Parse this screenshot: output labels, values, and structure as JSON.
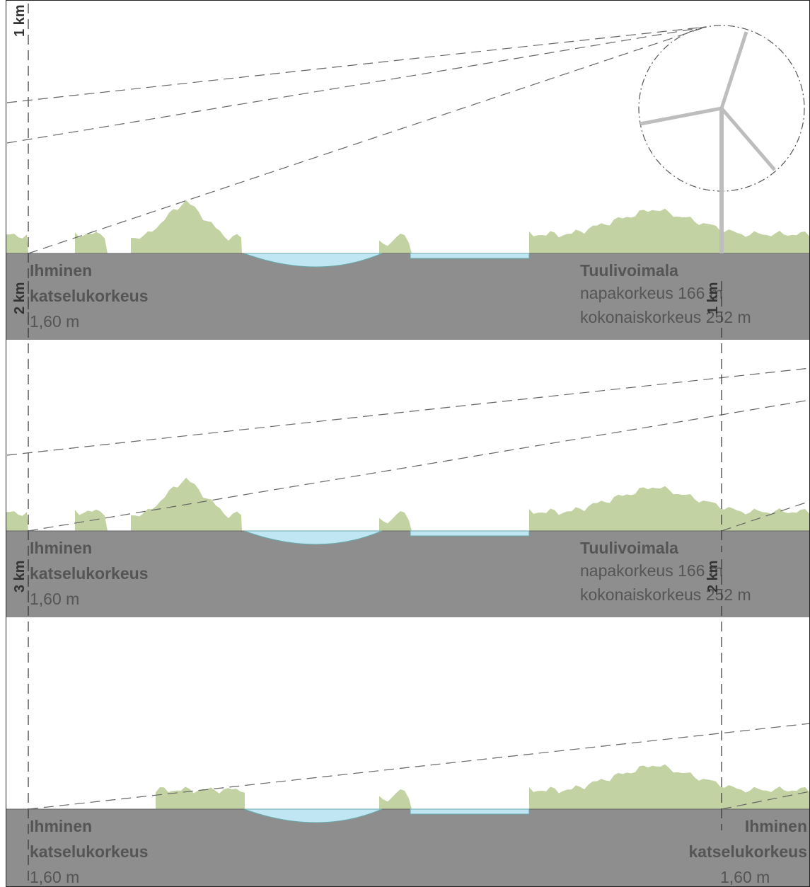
{
  "panels": [
    {
      "distance_label": "1 km",
      "observer": {
        "title": "Ihminen",
        "subtitle": "katselukorkeus",
        "height": "1,60 m"
      },
      "turbine": {
        "title": "Tuulivoimala",
        "hub": "napakorkeus 166 m",
        "total": "kokonaiskorkeus 252 m"
      }
    },
    {
      "distance_label": "2 km",
      "right_distance_label": "1 km",
      "observer": {
        "title": "Ihminen",
        "subtitle": "katselukorkeus",
        "height": "1,60 m"
      },
      "turbine": {
        "title": "Tuulivoimala",
        "hub": "napakorkeus 166 m",
        "total": "kokonaiskorkeus 252 m"
      }
    },
    {
      "distance_label": "3 km",
      "right_distance_label": "2 km",
      "observer": {
        "title": "Ihminen",
        "subtitle": "katselukorkeus",
        "height": "1,60 m"
      },
      "right_observer": {
        "title": "Ihminen",
        "subtitle": "katselukorkeus",
        "height": "1,60 m"
      }
    }
  ]
}
